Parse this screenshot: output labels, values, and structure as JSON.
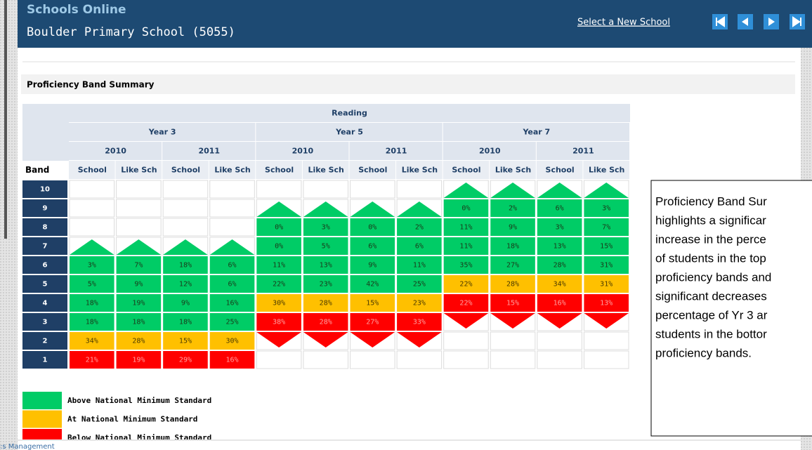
{
  "header": {
    "app": "Schools Online",
    "school": "Boulder Primary School (5055)",
    "link": "Select a New School"
  },
  "section_title": "Proficiency Band Summary",
  "table": {
    "subject": "Reading",
    "band_header": "Band",
    "years": [
      {
        "label": "Year 3",
        "periods": [
          "2010",
          "2011"
        ]
      },
      {
        "label": "Year 5",
        "periods": [
          "2010",
          "2011"
        ]
      },
      {
        "label": "Year 7",
        "periods": [
          "2010",
          "2011"
        ]
      }
    ],
    "groups": [
      "School",
      "Like Sch"
    ],
    "rows": [
      {
        "band": "10",
        "cells": [
          null,
          null,
          null,
          null,
          null,
          null,
          null,
          null,
          "up",
          "up",
          "up",
          "up"
        ]
      },
      {
        "band": "9",
        "cells": [
          null,
          null,
          null,
          null,
          "up",
          "up",
          "up",
          "up",
          {
            "text": "0%",
            "level": 0
          },
          {
            "text": "2%",
            "level": 0
          },
          {
            "text": "6%",
            "level": 0
          },
          {
            "text": "3%",
            "level": 0
          }
        ]
      },
      {
        "band": "8",
        "cells": [
          null,
          null,
          null,
          null,
          {
            "text": "0%",
            "level": 0
          },
          {
            "text": "3%",
            "level": 0
          },
          {
            "text": "0%",
            "level": 0
          },
          {
            "text": "2%",
            "level": 0
          },
          {
            "text": "11%",
            "level": 0
          },
          {
            "text": "9%",
            "level": 0
          },
          {
            "text": "3%",
            "level": 0
          },
          {
            "text": "7%",
            "level": 0
          }
        ]
      },
      {
        "band": "7",
        "cells": [
          "up",
          "up",
          "up",
          "up",
          {
            "text": "0%",
            "level": 0
          },
          {
            "text": "5%",
            "level": 0
          },
          {
            "text": "6%",
            "level": 0
          },
          {
            "text": "6%",
            "level": 0
          },
          {
            "text": "11%",
            "level": 0
          },
          {
            "text": "18%",
            "level": 0
          },
          {
            "text": "13%",
            "level": 0
          },
          {
            "text": "15%",
            "level": 0
          }
        ]
      },
      {
        "band": "6",
        "cells": [
          {
            "text": "3%",
            "level": 0
          },
          {
            "text": "7%",
            "level": 0
          },
          {
            "text": "18%",
            "level": 0
          },
          {
            "text": "6%",
            "level": 0
          },
          {
            "text": "11%",
            "level": 0
          },
          {
            "text": "13%",
            "level": 0
          },
          {
            "text": "9%",
            "level": 0
          },
          {
            "text": "11%",
            "level": 0
          },
          {
            "text": "35%",
            "level": 0
          },
          {
            "text": "27%",
            "level": 0
          },
          {
            "text": "28%",
            "level": 0
          },
          {
            "text": "31%",
            "level": 0
          }
        ]
      },
      {
        "band": "5",
        "cells": [
          {
            "text": "5%",
            "level": 0
          },
          {
            "text": "9%",
            "level": 0
          },
          {
            "text": "12%",
            "level": 0
          },
          {
            "text": "6%",
            "level": 0
          },
          {
            "text": "22%",
            "level": 0
          },
          {
            "text": "23%",
            "level": 0
          },
          {
            "text": "42%",
            "level": 0
          },
          {
            "text": "25%",
            "level": 0
          },
          {
            "text": "22%",
            "level": 1
          },
          {
            "text": "28%",
            "level": 1
          },
          {
            "text": "34%",
            "level": 1
          },
          {
            "text": "31%",
            "level": 1
          }
        ]
      },
      {
        "band": "4",
        "cells": [
          {
            "text": "18%",
            "level": 0
          },
          {
            "text": "19%",
            "level": 0
          },
          {
            "text": "9%",
            "level": 0
          },
          {
            "text": "16%",
            "level": 0
          },
          {
            "text": "30%",
            "level": 1
          },
          {
            "text": "28%",
            "level": 1
          },
          {
            "text": "15%",
            "level": 1
          },
          {
            "text": "23%",
            "level": 1
          },
          {
            "text": "22%",
            "level": 2
          },
          {
            "text": "15%",
            "level": 2
          },
          {
            "text": "16%",
            "level": 2
          },
          {
            "text": "13%",
            "level": 2
          }
        ]
      },
      {
        "band": "3",
        "cells": [
          {
            "text": "18%",
            "level": 0
          },
          {
            "text": "18%",
            "level": 0
          },
          {
            "text": "18%",
            "level": 0
          },
          {
            "text": "25%",
            "level": 0
          },
          {
            "text": "38%",
            "level": 2
          },
          {
            "text": "28%",
            "level": 2
          },
          {
            "text": "27%",
            "level": 2
          },
          {
            "text": "33%",
            "level": 2
          },
          "down",
          "down",
          "down",
          "down"
        ]
      },
      {
        "band": "2",
        "cells": [
          {
            "text": "34%",
            "level": 1
          },
          {
            "text": "28%",
            "level": 1
          },
          {
            "text": "15%",
            "level": 1
          },
          {
            "text": "30%",
            "level": 1
          },
          "down",
          "down",
          "down",
          "down",
          null,
          null,
          null,
          null
        ]
      },
      {
        "band": "1",
        "cells": [
          {
            "text": "21%",
            "level": 2
          },
          {
            "text": "19%",
            "level": 2
          },
          {
            "text": "29%",
            "level": 2
          },
          {
            "text": "16%",
            "level": 2
          },
          null,
          null,
          null,
          null,
          null,
          null,
          null,
          null
        ]
      }
    ]
  },
  "legend": [
    {
      "label": "Above National Minimum Standard",
      "color": "#00cc66",
      "text_color": "#1a3a1a"
    },
    {
      "label": "At National Minimum Standard",
      "color": "#ffc000",
      "text_color": "#4a3a00"
    },
    {
      "label": "Below National Minimum Standard",
      "color": "#ff0000",
      "text_color": "#ffa0a0"
    }
  ],
  "note": {
    "lines": [
      "Proficiency Band Sur",
      "highlights a significar",
      "increase in the perce",
      "of students in the top",
      "proficiency bands and",
      "significant decreases",
      "percentage of Yr 3 ar",
      "students in the bottor",
      "proficiency bands."
    ]
  },
  "footer": ":s Management"
}
